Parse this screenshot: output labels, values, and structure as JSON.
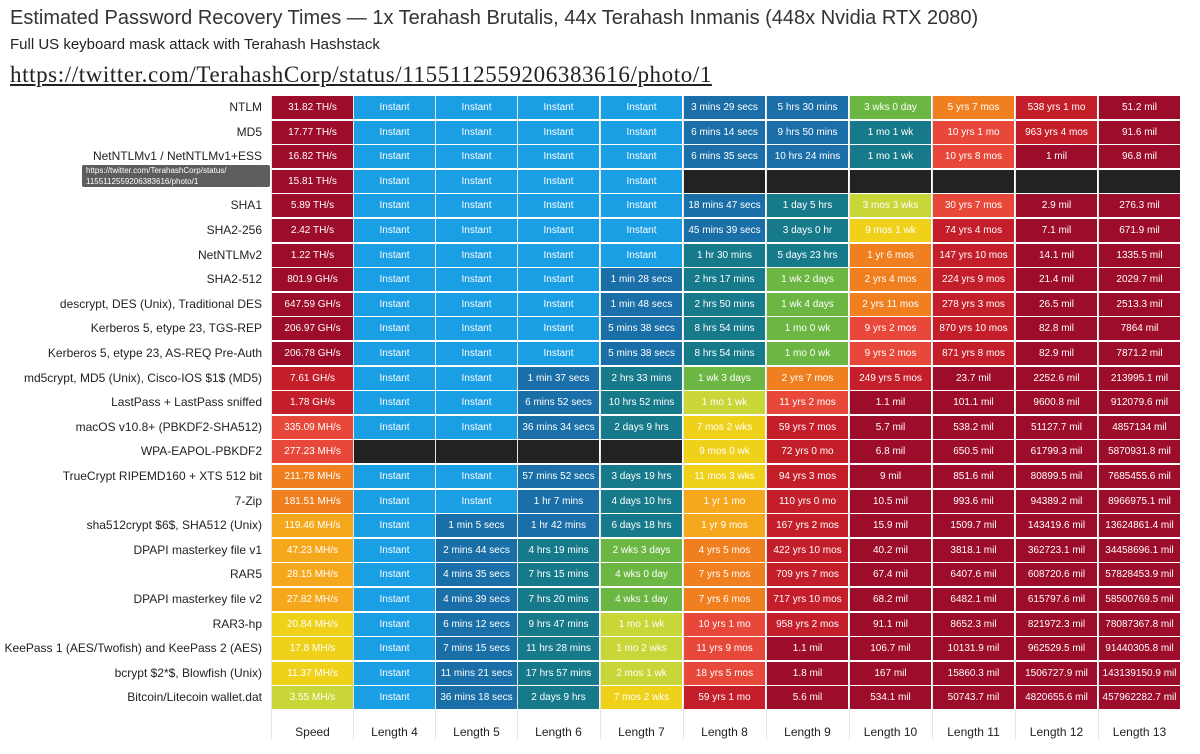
{
  "header": {
    "title": "Estimated Password Recovery Times — 1x Terahash Brutalis, 44x Terahash Inmanis (448x Nvidia RTX 2080)",
    "subtitle": "Full US keyboard mask attack with Terahash Hashstack",
    "url": "https://twitter.com/TerahashCorp/status/1155112559206383616/photo/1"
  },
  "tooltip": {
    "line1": "https://twitter.com/TerahashCorp/status/",
    "line2": "1155112559206383616/photo/1"
  },
  "colors": {
    "darkred": "#9d0c2a",
    "red": "#c41e2b",
    "redorange": "#e8483a",
    "orange": "#f07f20",
    "yelloworange": "#f6a81c",
    "yellow": "#f0d119",
    "yellowgreen": "#c8d637",
    "green": "#6cb743",
    "teal": "#167a8a",
    "tealblue": "#1a6fa8",
    "blue": "#1a9ee4",
    "black": "#222222"
  },
  "chart_data": {
    "type": "table",
    "title": "Estimated Password Recovery Times — 1x Terahash Brutalis, 44x Terahash Inmanis (448x Nvidia RTX 2080)",
    "columns": [
      "Speed",
      "Length 4",
      "Length 5",
      "Length 6",
      "Length 7",
      "Length 8",
      "Length 9",
      "Length 10",
      "Length 11",
      "Length 12",
      "Length 13"
    ],
    "rows": [
      {
        "name": "NTLM",
        "speed": "31.82 TH/s",
        "values": [
          "Instant",
          "Instant",
          "Instant",
          "Instant",
          "3 mins 29 secs",
          "5 hrs 30 mins",
          "3 wks 0 day",
          "5 yrs 7 mos",
          "538 yrs 1 mo",
          "51.2 mil"
        ]
      },
      {
        "name": "MD5",
        "speed": "17.77 TH/s",
        "values": [
          "Instant",
          "Instant",
          "Instant",
          "Instant",
          "6 mins 14 secs",
          "9 hrs 50 mins",
          "1 mo 1 wk",
          "10 yrs 1 mo",
          "963 yrs 4 mos",
          "91.6 mil"
        ]
      },
      {
        "name": "NetNTLMv1 / NetNTLMv1+ESS",
        "speed": "16.82 TH/s",
        "values": [
          "Instant",
          "Instant",
          "Instant",
          "Instant",
          "6 mins 35 secs",
          "10 hrs 24 mins",
          "1 mo 1 wk",
          "10 yrs 8 mos",
          "1 mil",
          "96.8 mil"
        ]
      },
      {
        "name": "",
        "speed": "15.81 TH/s",
        "values": [
          "Instant",
          "Instant",
          "Instant",
          "Instant",
          "",
          "",
          "",
          "",
          "",
          ""
        ]
      },
      {
        "name": "SHA1",
        "speed": "5.89 TH/s",
        "values": [
          "Instant",
          "Instant",
          "Instant",
          "Instant",
          "18 mins 47 secs",
          "1 day 5 hrs",
          "3 mos 3 wks",
          "30 yrs 7 mos",
          "2.9 mil",
          "276.3 mil"
        ]
      },
      {
        "name": "SHA2-256",
        "speed": "2.42 TH/s",
        "values": [
          "Instant",
          "Instant",
          "Instant",
          "Instant",
          "45 mins 39 secs",
          "3 days 0 hr",
          "9 mos 1 wk",
          "74 yrs 4 mos",
          "7.1 mil",
          "671.9 mil"
        ]
      },
      {
        "name": "NetNTLMv2",
        "speed": "1.22 TH/s",
        "values": [
          "Instant",
          "Instant",
          "Instant",
          "Instant",
          "1 hr 30 mins",
          "5 days 23 hrs",
          "1 yr 6 mos",
          "147 yrs 10 mos",
          "14.1 mil",
          "1335.5 mil"
        ]
      },
      {
        "name": "SHA2-512",
        "speed": "801.9 GH/s",
        "values": [
          "Instant",
          "Instant",
          "Instant",
          "1 min 28 secs",
          "2 hrs 17 mins",
          "1 wk 2 days",
          "2 yrs 4 mos",
          "224 yrs 9 mos",
          "21.4 mil",
          "2029.7 mil"
        ]
      },
      {
        "name": "descrypt, DES (Unix), Traditional DES",
        "speed": "647.59 GH/s",
        "values": [
          "Instant",
          "Instant",
          "Instant",
          "1 min 48 secs",
          "2 hrs 50 mins",
          "1 wk 4 days",
          "2 yrs 11 mos",
          "278 yrs 3 mos",
          "26.5 mil",
          "2513.3 mil"
        ]
      },
      {
        "name": "Kerberos 5, etype 23, TGS-REP",
        "speed": "206.97 GH/s",
        "values": [
          "Instant",
          "Instant",
          "Instant",
          "5 mins 38 secs",
          "8 hrs 54 mins",
          "1 mo 0 wk",
          "9 yrs 2 mos",
          "870 yrs 10 mos",
          "82.8 mil",
          "7864 mil"
        ]
      },
      {
        "name": "Kerberos 5, etype 23, AS-REQ Pre-Auth",
        "speed": "206.78 GH/s",
        "values": [
          "Instant",
          "Instant",
          "Instant",
          "5 mins 38 secs",
          "8 hrs 54 mins",
          "1 mo 0 wk",
          "9 yrs 2 mos",
          "871 yrs 8 mos",
          "82.9 mil",
          "7871.2 mil"
        ]
      },
      {
        "name": "md5crypt, MD5 (Unix), Cisco-IOS $1$ (MD5)",
        "speed": "7.61 GH/s",
        "values": [
          "Instant",
          "Instant",
          "1 min 37 secs",
          "2 hrs 33 mins",
          "1 wk 3 days",
          "2 yrs 7 mos",
          "249 yrs 5 mos",
          "23.7 mil",
          "2252.6 mil",
          "213995.1 mil"
        ]
      },
      {
        "name": "LastPass + LastPass sniffed",
        "speed": "1.78 GH/s",
        "values": [
          "Instant",
          "Instant",
          "6 mins 52 secs",
          "10 hrs 52 mins",
          "1 mo 1 wk",
          "11 yrs 2 mos",
          "1.1 mil",
          "101.1 mil",
          "9600.8 mil",
          "912079.6 mil"
        ]
      },
      {
        "name": "macOS v10.8+ (PBKDF2-SHA512)",
        "speed": "335.09 MH/s",
        "values": [
          "Instant",
          "Instant",
          "36 mins 34 secs",
          "2 days 9 hrs",
          "7 mos 2 wks",
          "59 yrs 7 mos",
          "5.7 mil",
          "538.2 mil",
          "51127.7 mil",
          "4857134 mil"
        ]
      },
      {
        "name": "WPA-EAPOL-PBKDF2",
        "speed": "277.23 MH/s",
        "values": [
          "",
          "",
          "",
          "",
          "9 mos 0 wk",
          "72 yrs 0 mo",
          "6.8 mil",
          "650.5 mil",
          "61799.3 mil",
          "5870931.8 mil"
        ]
      },
      {
        "name": "TrueCrypt RIPEMD160 + XTS 512 bit",
        "speed": "211.78 MH/s",
        "values": [
          "Instant",
          "Instant",
          "57 mins 52 secs",
          "3 days 19 hrs",
          "11 mos 3 wks",
          "94 yrs 3 mos",
          "9 mil",
          "851.6 mil",
          "80899.5 mil",
          "7685455.6 mil"
        ]
      },
      {
        "name": "7-Zip",
        "speed": "181.51 MH/s",
        "values": [
          "Instant",
          "Instant",
          "1 hr 7 mins",
          "4 days 10 hrs",
          "1 yr 1 mo",
          "110 yrs 0 mo",
          "10.5 mil",
          "993.6 mil",
          "94389.2 mil",
          "8966975.1 mil"
        ]
      },
      {
        "name": "sha512crypt $6$, SHA512 (Unix)",
        "speed": "119.46 MH/s",
        "values": [
          "Instant",
          "1 min 5 secs",
          "1 hr 42 mins",
          "6 days 18 hrs",
          "1 yr 9 mos",
          "167 yrs 2 mos",
          "15.9 mil",
          "1509.7 mil",
          "143419.6 mil",
          "13624861.4 mil"
        ]
      },
      {
        "name": "DPAPI masterkey file v1",
        "speed": "47.23 MH/s",
        "values": [
          "Instant",
          "2 mins 44 secs",
          "4 hrs 19 mins",
          "2 wks 3 days",
          "4 yrs 5 mos",
          "422 yrs 10 mos",
          "40.2 mil",
          "3818.1 mil",
          "362723.1 mil",
          "34458696.1 mil"
        ]
      },
      {
        "name": "RAR5",
        "speed": "28.15 MH/s",
        "values": [
          "Instant",
          "4 mins 35 secs",
          "7 hrs 15 mins",
          "4 wks 0 day",
          "7 yrs 5 mos",
          "709 yrs 7 mos",
          "67.4 mil",
          "6407.6 mil",
          "608720.6 mil",
          "57828453.9 mil"
        ]
      },
      {
        "name": "DPAPI masterkey file v2",
        "speed": "27.82 MH/s",
        "values": [
          "Instant",
          "4 mins 39 secs",
          "7 hrs 20 mins",
          "4 wks 1 day",
          "7 yrs 6 mos",
          "717 yrs 10 mos",
          "68.2 mil",
          "6482.1 mil",
          "615797.6 mil",
          "58500769.5 mil"
        ]
      },
      {
        "name": "RAR3-hp",
        "speed": "20.84 MH/s",
        "values": [
          "Instant",
          "6 mins 12 secs",
          "9 hrs 47 mins",
          "1 mo 1 wk",
          "10 yrs 1 mo",
          "958 yrs 2 mos",
          "91.1 mil",
          "8652.3 mil",
          "821972.3 mil",
          "78087367.8 mil"
        ]
      },
      {
        "name": "KeePass 1 (AES/Twofish) and KeePass 2 (AES)",
        "speed": "17.8 MH/s",
        "values": [
          "Instant",
          "7 mins 15 secs",
          "11 hrs 28 mins",
          "1 mo 2 wks",
          "11 yrs 9 mos",
          "1.1 mil",
          "106.7 mil",
          "10131.9 mil",
          "962529.5 mil",
          "91440305.8 mil"
        ]
      },
      {
        "name": "bcrypt $2*$, Blowfish (Unix)",
        "speed": "11.37 MH/s",
        "values": [
          "Instant",
          "11 mins 21 secs",
          "17 hrs 57 mins",
          "2 mos 1 wk",
          "18 yrs 5 mos",
          "1.8 mil",
          "167 mil",
          "15860.3 mil",
          "1506727.9 mil",
          "143139150.9 mil"
        ]
      },
      {
        "name": "Bitcoin/Litecoin wallet.dat",
        "speed": "3.55 MH/s",
        "values": [
          "Instant",
          "36 mins 18 secs",
          "2 days 9 hrs",
          "7 mos 2 wks",
          "59 yrs 1 mo",
          "5.6 mil",
          "534.1 mil",
          "50743.7 mil",
          "4820655.6 mil",
          "457962282.7 mil"
        ]
      }
    ],
    "speed_colors": [
      "darkred",
      "darkred",
      "darkred",
      "darkred",
      "darkred",
      "darkred",
      "darkred",
      "darkred",
      "darkred",
      "darkred",
      "darkred",
      "red",
      "red",
      "redorange",
      "redorange",
      "orange",
      "orange",
      "yelloworange",
      "yelloworange",
      "yelloworange",
      "yelloworange",
      "yellow",
      "yellow",
      "yellow",
      "yellowgreen"
    ],
    "cell_colors": [
      [
        "blue",
        "blue",
        "blue",
        "blue",
        "tealblue",
        "tealblue",
        "green",
        "orange",
        "red",
        "darkred"
      ],
      [
        "blue",
        "blue",
        "blue",
        "blue",
        "tealblue",
        "tealblue",
        "teal",
        "redorange",
        "red",
        "darkred"
      ],
      [
        "blue",
        "blue",
        "blue",
        "blue",
        "tealblue",
        "tealblue",
        "teal",
        "redorange",
        "darkred",
        "darkred"
      ],
      [
        "blue",
        "blue",
        "blue",
        "blue",
        "black",
        "black",
        "black",
        "black",
        "black",
        "black"
      ],
      [
        "blue",
        "blue",
        "blue",
        "blue",
        "tealblue",
        "teal",
        "yellowgreen",
        "redorange",
        "darkred",
        "darkred"
      ],
      [
        "blue",
        "blue",
        "blue",
        "blue",
        "tealblue",
        "teal",
        "yellow",
        "red",
        "darkred",
        "darkred"
      ],
      [
        "blue",
        "blue",
        "blue",
        "blue",
        "teal",
        "teal",
        "orange",
        "red",
        "darkred",
        "darkred"
      ],
      [
        "blue",
        "blue",
        "blue",
        "tealblue",
        "teal",
        "green",
        "orange",
        "red",
        "darkred",
        "darkred"
      ],
      [
        "blue",
        "blue",
        "blue",
        "tealblue",
        "teal",
        "green",
        "orange",
        "red",
        "darkred",
        "darkred"
      ],
      [
        "blue",
        "blue",
        "blue",
        "tealblue",
        "teal",
        "green",
        "redorange",
        "red",
        "darkred",
        "darkred"
      ],
      [
        "blue",
        "blue",
        "blue",
        "tealblue",
        "teal",
        "green",
        "redorange",
        "red",
        "darkred",
        "darkred"
      ],
      [
        "blue",
        "blue",
        "tealblue",
        "teal",
        "green",
        "orange",
        "red",
        "darkred",
        "darkred",
        "darkred"
      ],
      [
        "blue",
        "blue",
        "tealblue",
        "teal",
        "yellowgreen",
        "redorange",
        "darkred",
        "darkred",
        "darkred",
        "darkred"
      ],
      [
        "blue",
        "blue",
        "tealblue",
        "teal",
        "yellow",
        "red",
        "darkred",
        "darkred",
        "darkred",
        "darkred"
      ],
      [
        "black",
        "black",
        "black",
        "black",
        "yellow",
        "red",
        "darkred",
        "darkred",
        "darkred",
        "darkred"
      ],
      [
        "blue",
        "blue",
        "tealblue",
        "teal",
        "yellow",
        "red",
        "darkred",
        "darkred",
        "darkred",
        "darkred"
      ],
      [
        "blue",
        "blue",
        "tealblue",
        "teal",
        "yelloworange",
        "red",
        "darkred",
        "darkred",
        "darkred",
        "darkred"
      ],
      [
        "blue",
        "tealblue",
        "tealblue",
        "teal",
        "yelloworange",
        "red",
        "darkred",
        "darkred",
        "darkred",
        "darkred"
      ],
      [
        "blue",
        "tealblue",
        "teal",
        "green",
        "orange",
        "red",
        "darkred",
        "darkred",
        "darkred",
        "darkred"
      ],
      [
        "blue",
        "tealblue",
        "teal",
        "green",
        "orange",
        "red",
        "darkred",
        "darkred",
        "darkred",
        "darkred"
      ],
      [
        "blue",
        "tealblue",
        "teal",
        "green",
        "orange",
        "red",
        "darkred",
        "darkred",
        "darkred",
        "darkred"
      ],
      [
        "blue",
        "tealblue",
        "teal",
        "yellowgreen",
        "redorange",
        "red",
        "darkred",
        "darkred",
        "darkred",
        "darkred"
      ],
      [
        "blue",
        "tealblue",
        "teal",
        "yellowgreen",
        "redorange",
        "darkred",
        "darkred",
        "darkred",
        "darkred",
        "darkred"
      ],
      [
        "blue",
        "tealblue",
        "teal",
        "yellowgreen",
        "redorange",
        "darkred",
        "darkred",
        "darkred",
        "darkred",
        "darkred"
      ],
      [
        "blue",
        "tealblue",
        "teal",
        "yellow",
        "red",
        "darkred",
        "darkred",
        "darkred",
        "darkred",
        "darkred"
      ]
    ]
  }
}
